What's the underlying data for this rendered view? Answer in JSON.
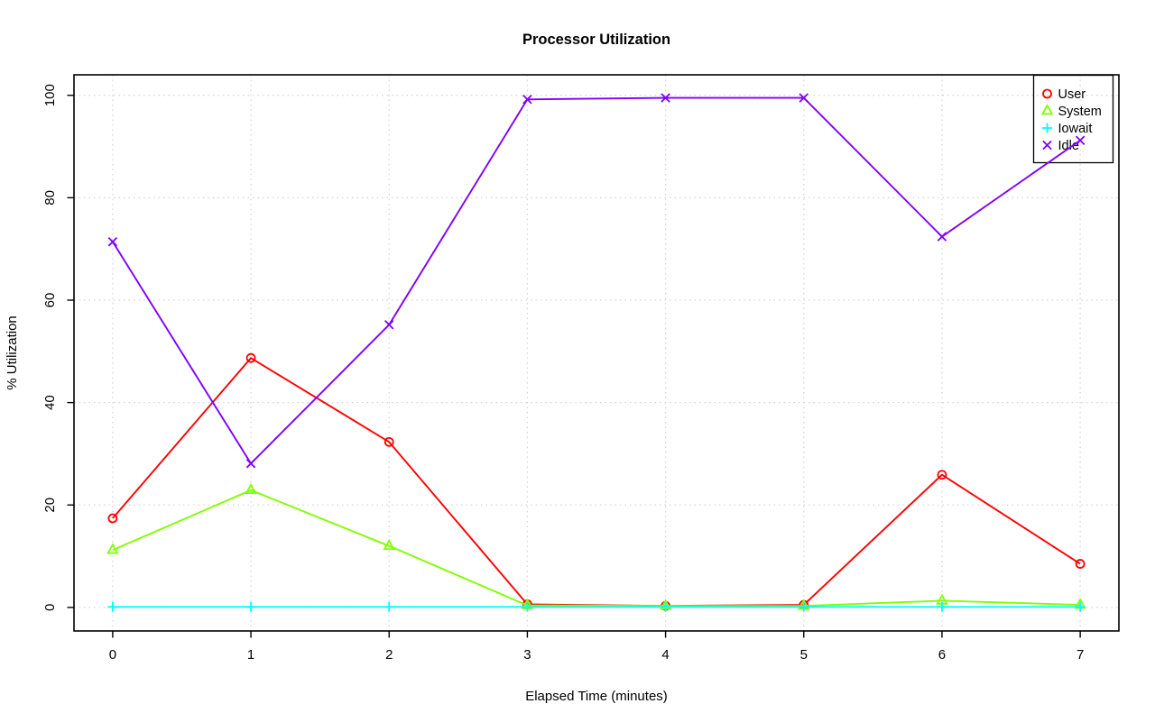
{
  "page": {
    "background": "#ffffff",
    "border_color": "#000000",
    "grid_color": "#d4d4d4",
    "tick_color": "#000000"
  },
  "chart_data": {
    "type": "line",
    "title": "Processor Utilization",
    "xlabel": "Elapsed Time (minutes)",
    "ylabel": "% Utilization",
    "x": [
      0,
      1,
      2,
      3,
      4,
      5,
      6,
      7
    ],
    "x_ticks": [
      "0",
      "1",
      "2",
      "3",
      "4",
      "5",
      "6",
      "7"
    ],
    "y_ticks": [
      "0",
      "20",
      "40",
      "60",
      "80",
      "100"
    ],
    "y_tick_values": [
      0,
      20,
      40,
      60,
      80,
      100
    ],
    "xlim": [
      -0.28,
      7.28
    ],
    "ylim": [
      -4.6,
      104
    ],
    "grid": "dotted",
    "legend_position": "top-right",
    "series": [
      {
        "name": "User",
        "color": "#ff0000",
        "marker": "circle",
        "values": [
          17.4,
          48.7,
          32.3,
          0.6,
          0.3,
          0.5,
          25.9,
          8.5
        ]
      },
      {
        "name": "System",
        "color": "#80ff00",
        "marker": "triangle",
        "values": [
          11.2,
          22.9,
          12.0,
          0.4,
          0.3,
          0.3,
          1.3,
          0.5
        ]
      },
      {
        "name": "Iowait",
        "color": "#00ffff",
        "marker": "plus",
        "values": [
          0.1,
          0.1,
          0.1,
          0.1,
          0.1,
          0.1,
          0.1,
          0.1
        ]
      },
      {
        "name": "Idle",
        "color": "#8000ff",
        "marker": "x",
        "values": [
          71.4,
          28.1,
          55.2,
          99.2,
          99.5,
          99.5,
          72.4,
          91.2
        ]
      }
    ]
  }
}
